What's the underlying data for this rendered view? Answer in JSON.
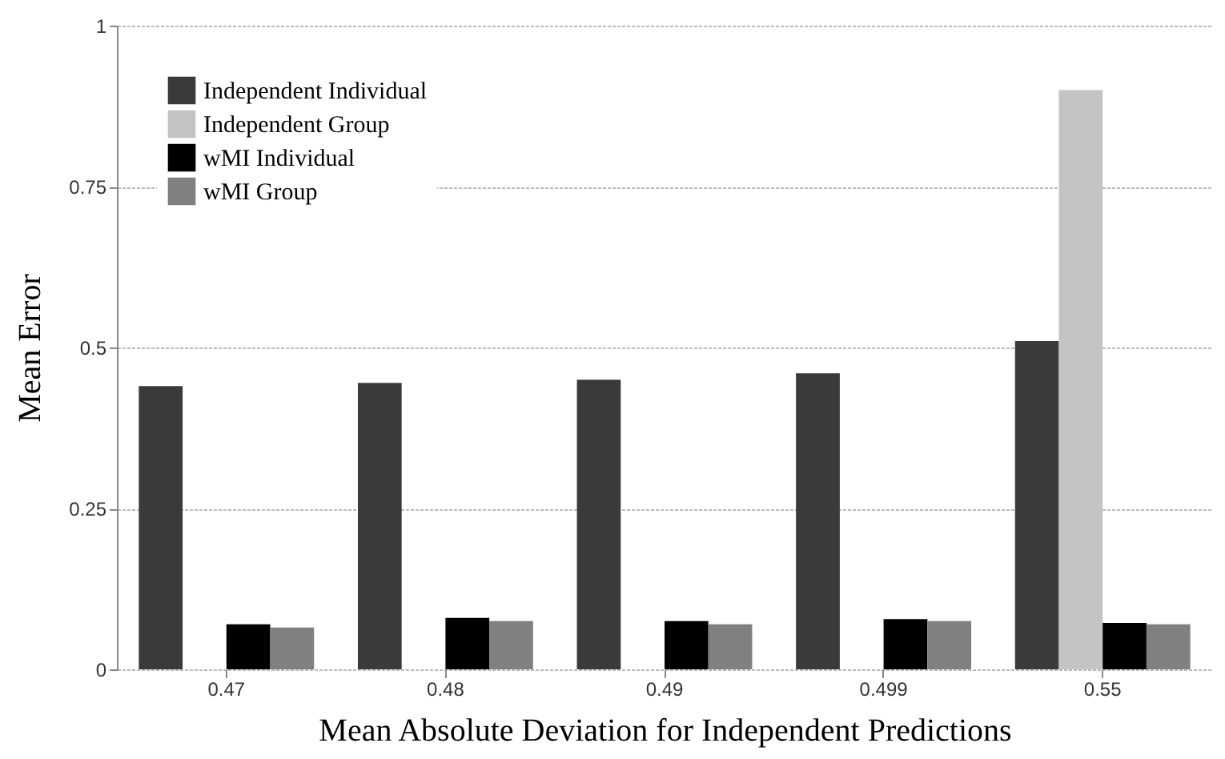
{
  "chart_data": {
    "type": "bar",
    "xlabel": "Mean Absolute Deviation for Independent Predictions",
    "ylabel": "Mean Error",
    "categories": [
      "0.47",
      "0.48",
      "0.49",
      "0.499",
      "0.55"
    ],
    "series": [
      {
        "name": "Independent Individual",
        "color": "#3a3a3a",
        "values": [
          0.44,
          0.445,
          0.45,
          0.46,
          0.51
        ]
      },
      {
        "name": "Independent Group",
        "color": "#c4c4c4",
        "values": [
          null,
          null,
          null,
          null,
          0.9
        ]
      },
      {
        "name": "wMI Individual",
        "color": "#000000",
        "values": [
          0.07,
          0.08,
          0.075,
          0.078,
          0.072
        ]
      },
      {
        "name": "wMI Group",
        "color": "#808080",
        "values": [
          0.065,
          0.075,
          0.07,
          0.075,
          0.07
        ]
      }
    ],
    "ylim": [
      0,
      1
    ],
    "yticks": [
      0,
      0.25,
      0.5,
      0.75,
      1
    ],
    "grid": "y",
    "legend": "top left"
  }
}
